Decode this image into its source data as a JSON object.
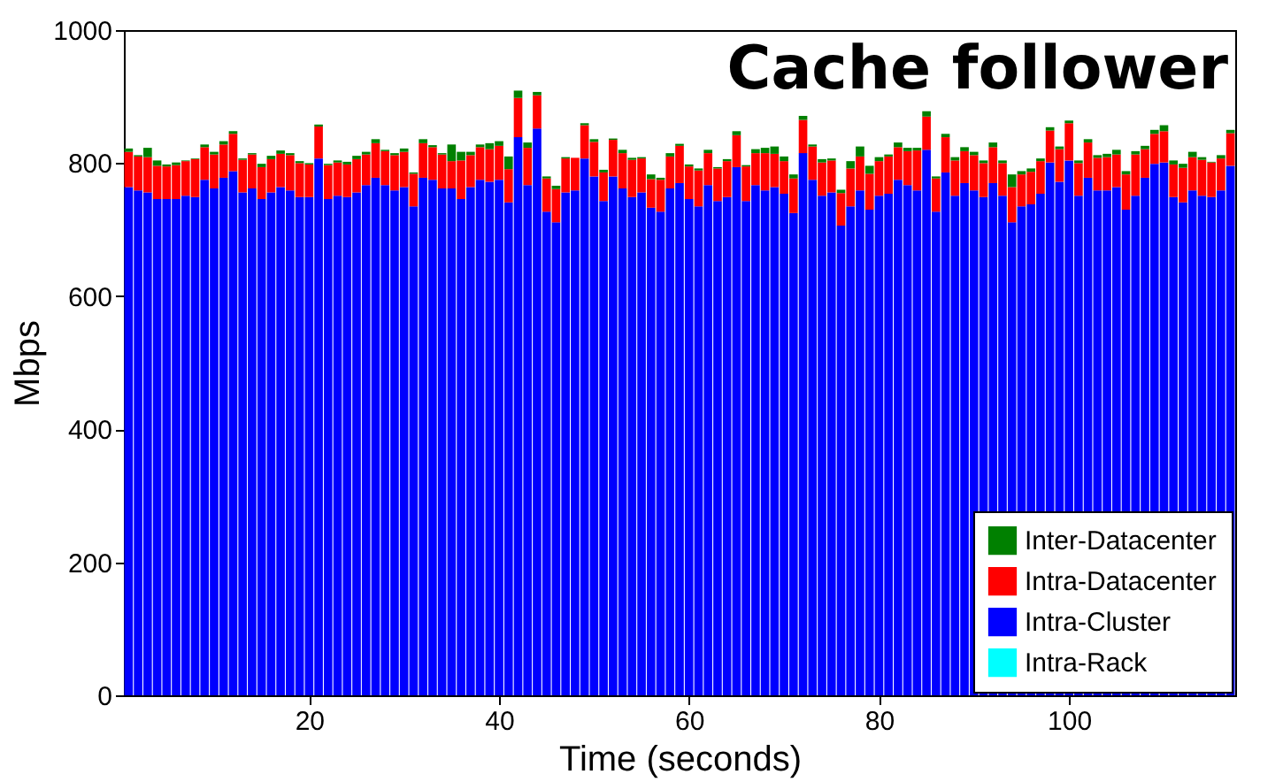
{
  "chart_data": {
    "type": "bar",
    "title": "Cache follower",
    "xlabel": "Time (seconds)",
    "ylabel": "Mbps",
    "x": [
      1,
      2,
      3,
      4,
      5,
      6,
      7,
      8,
      9,
      10,
      11,
      12,
      13,
      14,
      15,
      16,
      17,
      18,
      19,
      20,
      21,
      22,
      23,
      24,
      25,
      26,
      27,
      28,
      29,
      30,
      31,
      32,
      33,
      34,
      35,
      36,
      37,
      38,
      39,
      40,
      41,
      42,
      43,
      44,
      45,
      46,
      47,
      48,
      49,
      50,
      51,
      52,
      53,
      54,
      55,
      56,
      57,
      58,
      59,
      60,
      61,
      62,
      63,
      64,
      65,
      66,
      67,
      68,
      69,
      70,
      71,
      72,
      73,
      74,
      75,
      76,
      77,
      78,
      79,
      80,
      81,
      82,
      83,
      84,
      85,
      86,
      87,
      88,
      89,
      90,
      91,
      92,
      93,
      94,
      95,
      96,
      97,
      98,
      99,
      100,
      101,
      102,
      103,
      104,
      105,
      106,
      107,
      108,
      109,
      110,
      111,
      112,
      113,
      114,
      115,
      116,
      117
    ],
    "stacked": true,
    "legend": "bottom right",
    "grid": false,
    "xlim": [
      0.5,
      117.5
    ],
    "xticks": [
      20,
      40,
      60,
      80,
      100
    ],
    "ylim": [
      0,
      1000
    ],
    "yticks": [
      0,
      200,
      400,
      600,
      800,
      1000
    ],
    "series": [
      {
        "name": "Intra-Rack",
        "color": "#00ffff",
        "values": [
          0,
          0,
          0,
          0,
          0,
          0,
          0,
          0,
          0,
          0,
          0,
          0,
          0,
          0,
          0,
          0,
          0,
          0,
          0,
          0,
          0,
          0,
          0,
          0,
          0,
          0,
          0,
          0,
          0,
          0,
          0,
          0,
          0,
          0,
          0,
          0,
          0,
          0,
          0,
          0,
          0,
          0,
          0,
          0,
          0,
          0,
          0,
          0,
          0,
          0,
          0,
          0,
          0,
          0,
          0,
          0,
          0,
          0,
          0,
          0,
          0,
          0,
          0,
          0,
          0,
          0,
          0,
          0,
          0,
          0,
          0,
          0,
          0,
          0,
          0,
          0,
          0,
          0,
          0,
          0,
          0,
          0,
          0,
          0,
          0,
          0,
          0,
          0,
          0,
          0,
          0,
          0,
          0,
          0,
          0,
          0,
          0,
          0,
          0,
          0,
          0,
          0,
          0,
          0,
          0,
          0,
          0,
          0,
          0,
          0,
          0,
          0,
          0,
          0,
          0,
          0,
          0
        ]
      },
      {
        "name": "Intra-Cluster",
        "color": "#0000ff",
        "values": [
          764,
          759,
          756,
          746,
          746,
          746,
          751,
          749,
          775,
          762,
          778,
          788,
          756,
          762,
          746,
          756,
          764,
          759,
          749,
          749,
          807,
          746,
          751,
          749,
          756,
          767,
          778,
          767,
          759,
          764,
          735,
          778,
          775,
          762,
          762,
          746,
          764,
          775,
          772,
          775,
          741,
          839,
          767,
          852,
          727,
          711,
          756,
          759,
          807,
          780,
          743,
          780,
          762,
          749,
          756,
          733,
          727,
          762,
          770,
          746,
          735,
          767,
          743,
          749,
          794,
          743,
          767,
          759,
          764,
          754,
          725,
          815,
          775,
          751,
          756,
          706,
          735,
          759,
          730,
          751,
          754,
          775,
          767,
          759,
          820,
          727,
          786,
          751,
          770,
          759,
          749,
          770,
          751,
          711,
          735,
          738,
          754,
          801,
          772,
          804,
          751,
          778,
          759,
          759,
          764,
          730,
          751,
          778,
          799,
          801,
          749,
          741,
          759,
          751,
          749,
          759,
          796
        ]
      },
      {
        "name": "Intra-Datacenter",
        "color": "#ff0000",
        "values": [
          53,
          51,
          53,
          50,
          49,
          51,
          52,
          57,
          49,
          51,
          50,
          56,
          49,
          51,
          48,
          50,
          50,
          53,
          51,
          49,
          48,
          51,
          50,
          49,
          50,
          46,
          52,
          51,
          53,
          53,
          49,
          52,
          49,
          51,
          41,
          58,
          48,
          49,
          49,
          51,
          50,
          59,
          56,
          50,
          50,
          50,
          51,
          49,
          50,
          52,
          43,
          55,
          53,
          56,
          51,
          43,
          48,
          48,
          56,
          49,
          54,
          48,
          49,
          54,
          48,
          52,
          48,
          56,
          50,
          49,
          52,
          50,
          50,
          50,
          48,
          49,
          57,
          51,
          54,
          52,
          56,
          49,
          51,
          60,
          50,
          50,
          53,
          53,
          48,
          53,
          51,
          54,
          49,
          53,
          48,
          49,
          49,
          48,
          49,
          56,
          49,
          53,
          49,
          50,
          49,
          53,
          62,
          43,
          45,
          47,
          49,
          52,
          50,
          54,
          52,
          48,
          49
        ]
      },
      {
        "name": "Inter-Datacenter",
        "color": "#008000",
        "values": [
          5,
          2,
          14,
          8,
          3,
          4,
          1,
          1,
          4,
          4,
          5,
          4,
          2,
          2,
          5,
          5,
          5,
          3,
          3,
          2,
          3,
          2,
          3,
          4,
          5,
          4,
          6,
          2,
          3,
          5,
          2,
          6,
          3,
          2,
          25,
          13,
          5,
          4,
          9,
          7,
          19,
          11,
          8,
          5,
          3,
          5,
          2,
          null,
          3,
          4,
          4,
          2,
          5,
          3,
          2,
          7,
          3,
          5,
          3,
          3,
          3,
          5,
          2,
          3,
          6,
          2,
          6,
          8,
          11,
          7,
          6,
          6,
          3,
          5,
          3,
          5,
          11,
          15,
          12,
          6,
          3,
          7,
          5,
          4,
          8,
          3,
          5,
          5,
          6,
          5,
          4,
          7,
          4,
          19,
          5,
          5,
          4,
          5,
          4,
          4,
          4,
          5,
          4,
          5,
          7,
          5,
          5,
          5,
          6,
          9,
          6,
          6,
          8,
          4,
          1,
          5,
          5
        ]
      }
    ]
  }
}
